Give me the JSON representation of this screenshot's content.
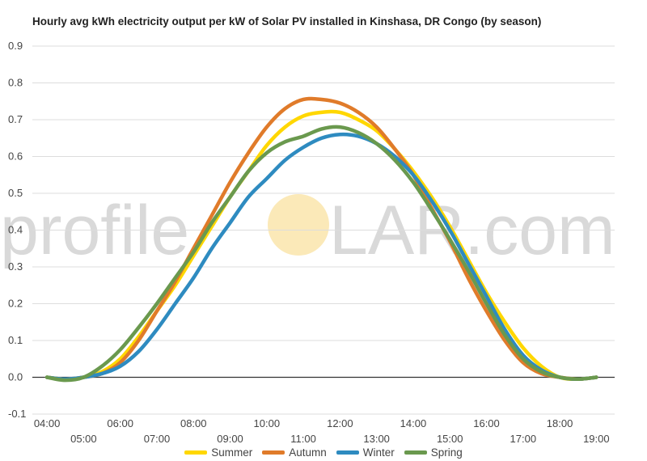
{
  "watermark": {
    "text_left": "profile",
    "text_right": "LAR.com",
    "color": "#d9d9d9",
    "sun_color": "#fbe9b8"
  },
  "chart_data": {
    "type": "line",
    "title": "Hourly avg kWh electricity output per kW of Solar PV installed in Kinshasa, DR Congo (by season)",
    "xlabel": "",
    "ylabel": "",
    "x": [
      4,
      4.5,
      5,
      5.5,
      6,
      6.5,
      7,
      7.5,
      8,
      8.5,
      9,
      9.5,
      10,
      10.5,
      11,
      11.5,
      12,
      12.5,
      13,
      13.5,
      14,
      14.5,
      15,
      15.5,
      16,
      16.5,
      17,
      17.5,
      18,
      18.5,
      19
    ],
    "x_ticks": [
      {
        "x": 4,
        "label": "04:00",
        "row": 0
      },
      {
        "x": 5,
        "label": "05:00",
        "row": 1
      },
      {
        "x": 6,
        "label": "06:00",
        "row": 0
      },
      {
        "x": 7,
        "label": "07:00",
        "row": 1
      },
      {
        "x": 8,
        "label": "08:00",
        "row": 0
      },
      {
        "x": 9,
        "label": "09:00",
        "row": 1
      },
      {
        "x": 10,
        "label": "10:00",
        "row": 0
      },
      {
        "x": 11,
        "label": "11:00",
        "row": 1
      },
      {
        "x": 12,
        "label": "12:00",
        "row": 0
      },
      {
        "x": 13,
        "label": "13:00",
        "row": 1
      },
      {
        "x": 14,
        "label": "14:00",
        "row": 0
      },
      {
        "x": 15,
        "label": "15:00",
        "row": 1
      },
      {
        "x": 16,
        "label": "16:00",
        "row": 0
      },
      {
        "x": 17,
        "label": "17:00",
        "row": 1
      },
      {
        "x": 18,
        "label": "18:00",
        "row": 0
      },
      {
        "x": 19,
        "label": "19:00",
        "row": 1
      }
    ],
    "xlim": [
      3.6,
      19.5
    ],
    "ylim": [
      -0.1,
      0.9
    ],
    "y_ticks": [
      -0.1,
      0.0,
      0.1,
      0.2,
      0.3,
      0.4,
      0.5,
      0.6,
      0.7,
      0.8,
      0.9
    ],
    "y_tick_labels": [
      "-0.1",
      "0.0",
      "0.1",
      "0.2",
      "0.3",
      "0.4",
      "0.5",
      "0.6",
      "0.7",
      "0.8",
      "0.9"
    ],
    "grid": true,
    "legend_position": "bottom",
    "series": [
      {
        "name": "Summer",
        "color": "#ffd700",
        "values": [
          0.0,
          -0.005,
          0.0,
          0.015,
          0.05,
          0.11,
          0.18,
          0.25,
          0.33,
          0.41,
          0.49,
          0.56,
          0.63,
          0.68,
          0.71,
          0.72,
          0.72,
          0.7,
          0.67,
          0.62,
          0.56,
          0.49,
          0.41,
          0.32,
          0.23,
          0.15,
          0.08,
          0.03,
          0.0,
          -0.005,
          0.0
        ]
      },
      {
        "name": "Autumn",
        "color": "#e07b2a",
        "values": [
          0.0,
          -0.005,
          0.0,
          0.01,
          0.04,
          0.1,
          0.18,
          0.26,
          0.35,
          0.44,
          0.53,
          0.61,
          0.68,
          0.73,
          0.755,
          0.755,
          0.745,
          0.72,
          0.68,
          0.62,
          0.55,
          0.46,
          0.37,
          0.27,
          0.18,
          0.1,
          0.04,
          0.01,
          0.0,
          -0.005,
          0.0
        ]
      },
      {
        "name": "Winter",
        "color": "#2e8bc0",
        "values": [
          0.0,
          -0.005,
          0.0,
          0.01,
          0.03,
          0.07,
          0.13,
          0.2,
          0.27,
          0.35,
          0.42,
          0.49,
          0.54,
          0.59,
          0.625,
          0.65,
          0.66,
          0.655,
          0.635,
          0.6,
          0.55,
          0.48,
          0.4,
          0.31,
          0.22,
          0.13,
          0.06,
          0.02,
          0.0,
          -0.005,
          0.0
        ]
      },
      {
        "name": "Spring",
        "color": "#6a994e",
        "values": [
          0.0,
          -0.008,
          0.0,
          0.03,
          0.075,
          0.135,
          0.2,
          0.27,
          0.34,
          0.42,
          0.49,
          0.56,
          0.61,
          0.64,
          0.655,
          0.675,
          0.68,
          0.665,
          0.635,
          0.59,
          0.53,
          0.455,
          0.375,
          0.29,
          0.2,
          0.115,
          0.05,
          0.015,
          0.0,
          -0.005,
          0.0
        ]
      }
    ]
  }
}
